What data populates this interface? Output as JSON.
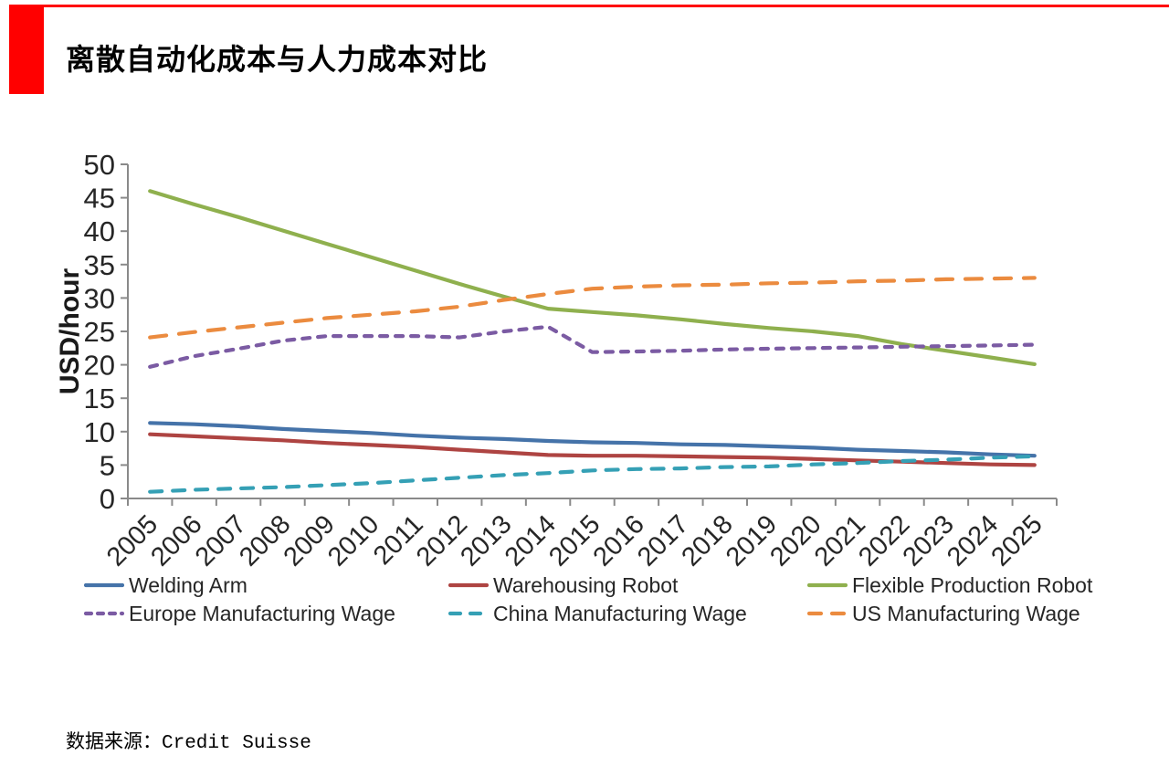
{
  "header": {
    "title": "离散自动化成本与人力成本对比",
    "accent_color": "#FF0000"
  },
  "chart_data": {
    "type": "line",
    "title": "",
    "xlabel": "",
    "ylabel": "USD/hour",
    "ylim": [
      0,
      50
    ],
    "ytick_step": 5,
    "grid": false,
    "legend_position": "bottom",
    "axis_color": "#8A8A8A",
    "categories": [
      "2005",
      "2006",
      "2007",
      "2008",
      "2009",
      "2010",
      "2011",
      "2012",
      "2013",
      "2014",
      "2015",
      "2016",
      "2017",
      "2018",
      "2019",
      "2020",
      "2021",
      "2022",
      "2023",
      "2024",
      "2025"
    ],
    "series": [
      {
        "name": "Welding Arm",
        "color": "#4573A9",
        "line_style": "solid",
        "values": [
          11.3,
          11.1,
          10.8,
          10.4,
          10.1,
          9.8,
          9.4,
          9.1,
          8.9,
          8.6,
          8.4,
          8.3,
          8.1,
          8.0,
          7.8,
          7.6,
          7.3,
          7.1,
          6.9,
          6.6,
          6.4
        ]
      },
      {
        "name": "Warehousing Robot",
        "color": "#AE4442",
        "line_style": "solid",
        "values": [
          9.6,
          9.3,
          9.0,
          8.7,
          8.3,
          8.0,
          7.7,
          7.3,
          6.9,
          6.5,
          6.4,
          6.4,
          6.3,
          6.2,
          6.1,
          5.9,
          5.7,
          5.5,
          5.3,
          5.1,
          5.0
        ]
      },
      {
        "name": "Flexible Production Robot",
        "color": "#8FB04E",
        "line_style": "solid",
        "values": [
          46.0,
          44.0,
          42.1,
          40.1,
          38.1,
          36.1,
          34.1,
          32.1,
          30.2,
          28.4,
          27.9,
          27.4,
          26.8,
          26.1,
          25.5,
          25.0,
          24.3,
          23.1,
          22.1,
          21.1,
          20.1
        ]
      },
      {
        "name": "Europe Manufacturing Wage",
        "color": "#7B5BA3",
        "line_style": "short-dash",
        "values": [
          19.7,
          21.3,
          22.4,
          23.6,
          24.3,
          24.3,
          24.3,
          24.1,
          25.0,
          25.7,
          21.9,
          22.0,
          22.1,
          22.3,
          22.4,
          22.5,
          22.6,
          22.7,
          22.8,
          22.9,
          23.0
        ]
      },
      {
        "name": "China Manufacturing Wage",
        "color": "#35A0B5",
        "line_style": "medium-dash",
        "values": [
          1.0,
          1.3,
          1.5,
          1.7,
          2.0,
          2.3,
          2.7,
          3.1,
          3.5,
          3.8,
          4.2,
          4.4,
          4.5,
          4.7,
          4.8,
          5.1,
          5.3,
          5.6,
          5.8,
          6.1,
          6.3
        ]
      },
      {
        "name": "US Manufacturing Wage",
        "color": "#EB8B3F",
        "line_style": "long-dash",
        "values": [
          24.1,
          24.9,
          25.6,
          26.3,
          27.0,
          27.5,
          28.0,
          28.7,
          29.7,
          30.6,
          31.4,
          31.7,
          31.9,
          32.0,
          32.2,
          32.3,
          32.5,
          32.6,
          32.8,
          32.9,
          33.0
        ]
      }
    ]
  },
  "footer": {
    "source_prefix": "数据来源：",
    "source_name": "Credit Suisse"
  }
}
